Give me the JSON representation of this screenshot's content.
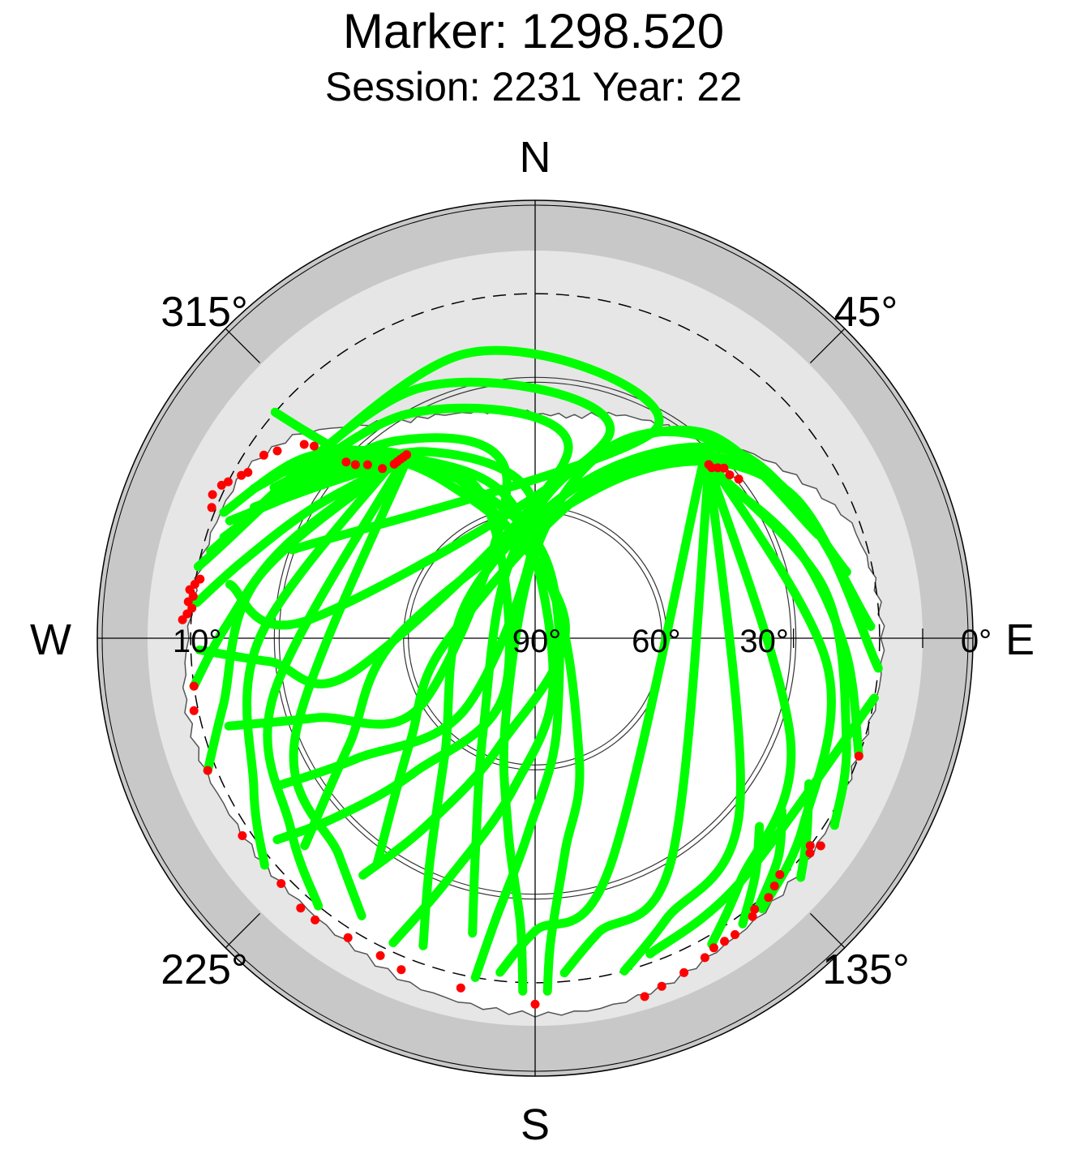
{
  "header": {
    "title": "Marker: 1298.520",
    "subtitle": "Session: 2231 Year: 22"
  },
  "chart_data": {
    "type": "scatter",
    "projection": "polar skyplot",
    "elevation_range": [
      0,
      90
    ],
    "azimuth_range": [
      0,
      360
    ],
    "direction_labels": [
      "N",
      "E",
      "S",
      "W"
    ],
    "azimuth_labels": [
      {
        "az": 45,
        "text": "45°"
      },
      {
        "az": 135,
        "text": "135°"
      },
      {
        "az": 225,
        "text": "225°"
      },
      {
        "az": 315,
        "text": "315°"
      }
    ],
    "elevation_labels": [
      {
        "el": 90,
        "text": "90°"
      },
      {
        "el": 60,
        "text": "60°"
      },
      {
        "el": 30,
        "text": "30°"
      },
      {
        "el": 0,
        "text": "0°"
      },
      {
        "el": 10,
        "text": "10°"
      }
    ],
    "cutoff_elevation": 10,
    "colors": {
      "track": "#00ff00",
      "low_elevation": "#ff0000",
      "outer_band": "#c8c8c8",
      "horizon_band": "#e6e6e6",
      "background": "#ffffff"
    },
    "horizon_mask": [
      [
        0,
        38
      ],
      [
        10,
        38
      ],
      [
        20,
        35
      ],
      [
        30,
        33
      ],
      [
        40,
        30
      ],
      [
        50,
        24
      ],
      [
        60,
        18
      ],
      [
        70,
        12
      ],
      [
        80,
        10
      ],
      [
        90,
        9
      ],
      [
        100,
        9
      ],
      [
        110,
        10
      ],
      [
        120,
        9
      ],
      [
        130,
        8
      ],
      [
        140,
        7
      ],
      [
        150,
        6
      ],
      [
        160,
        4
      ],
      [
        170,
        3
      ],
      [
        180,
        3
      ],
      [
        190,
        4
      ],
      [
        200,
        5
      ],
      [
        210,
        7
      ],
      [
        220,
        8
      ],
      [
        230,
        8
      ],
      [
        240,
        8
      ],
      [
        250,
        7
      ],
      [
        260,
        7
      ],
      [
        270,
        9
      ],
      [
        280,
        10
      ],
      [
        290,
        11
      ],
      [
        300,
        12
      ],
      [
        310,
        17
      ],
      [
        320,
        26
      ],
      [
        330,
        32
      ],
      [
        340,
        35
      ],
      [
        350,
        37
      ],
      [
        360,
        38
      ]
    ],
    "series": [
      {
        "values": [
          [
            318,
            37
          ],
          [
            314,
            28
          ],
          [
            312,
            18
          ],
          [
            311,
            10
          ]
        ]
      },
      {
        "values": [
          [
            321,
            38
          ],
          [
            300,
            30
          ],
          [
            285,
            20
          ],
          [
            276,
            11
          ]
        ]
      },
      {
        "values": [
          [
            322,
            38
          ],
          [
            290,
            28
          ],
          [
            272,
            18
          ],
          [
            262,
            10
          ]
        ]
      },
      {
        "values": [
          [
            324,
            38
          ],
          [
            282,
            24
          ],
          [
            258,
            16
          ],
          [
            248,
            8
          ]
        ]
      },
      {
        "values": [
          [
            323,
            37
          ],
          [
            270,
            26
          ],
          [
            242,
            16
          ],
          [
            230,
            8
          ]
        ]
      },
      {
        "values": [
          [
            325,
            38
          ],
          [
            258,
            28
          ],
          [
            232,
            18
          ],
          [
            219,
            10
          ]
        ]
      },
      {
        "values": [
          [
            326,
            38
          ],
          [
            248,
            30
          ],
          [
            222,
            22
          ],
          [
            212,
            14
          ]
        ]
      },
      {
        "values": [
          [
            320,
            37
          ],
          [
            310,
            32
          ],
          [
            302,
            26
          ],
          [
            296,
            20
          ]
        ]
      },
      {
        "values": [
          [
            317,
            33
          ],
          [
            303,
            26
          ],
          [
            295,
            18
          ]
        ]
      },
      {
        "values": [
          [
            316,
            32
          ],
          [
            300,
            24
          ],
          [
            291,
            14
          ]
        ]
      },
      {
        "values": [
          [
            300,
            20
          ],
          [
            315,
            30
          ],
          [
            330,
            48
          ],
          [
            12,
            76
          ],
          [
            160,
            60
          ],
          [
            172,
            40
          ],
          [
            177,
            20
          ],
          [
            178,
            8
          ]
        ]
      },
      {
        "values": [
          [
            298,
            16
          ],
          [
            312,
            26
          ],
          [
            328,
            42
          ],
          [
            5,
            70
          ],
          [
            165,
            70
          ],
          [
            182,
            45
          ],
          [
            188,
            24
          ],
          [
            190,
            10
          ]
        ]
      },
      {
        "values": [
          [
            292,
            12
          ],
          [
            308,
            22
          ],
          [
            322,
            36
          ],
          [
            350,
            58
          ],
          [
            155,
            80
          ],
          [
            188,
            55
          ],
          [
            200,
            30
          ],
          [
            205,
            12
          ]
        ]
      },
      {
        "values": [
          [
            305,
            20
          ],
          [
            318,
            32
          ],
          [
            335,
            50
          ],
          [
            60,
            82
          ],
          [
            198,
            64
          ],
          [
            210,
            40
          ],
          [
            216,
            22
          ]
        ]
      },
      {
        "values": [
          [
            308,
            24
          ],
          [
            322,
            36
          ],
          [
            340,
            56
          ],
          [
            210,
            76
          ],
          [
            222,
            48
          ],
          [
            228,
            28
          ],
          [
            232,
            14
          ]
        ]
      },
      {
        "values": [
          [
            300,
            22
          ],
          [
            330,
            40
          ],
          [
            0,
            60
          ],
          [
            225,
            68
          ],
          [
            236,
            40
          ],
          [
            240,
            22
          ]
        ]
      },
      {
        "values": [
          [
            294,
            18
          ],
          [
            325,
            34
          ],
          [
            350,
            52
          ],
          [
            240,
            60
          ],
          [
            250,
            36
          ],
          [
            254,
            16
          ]
        ]
      },
      {
        "values": [
          [
            288,
            14
          ],
          [
            330,
            30
          ],
          [
            10,
            46
          ],
          [
            260,
            48
          ],
          [
            265,
            28
          ],
          [
            268,
            12
          ]
        ]
      },
      {
        "values": [
          [
            285,
            12
          ],
          [
            335,
            26
          ],
          [
            20,
            40
          ],
          [
            275,
            38
          ],
          [
            280,
            18
          ]
        ]
      },
      {
        "values": [
          [
            282,
            10
          ],
          [
            345,
            22
          ],
          [
            30,
            34
          ],
          [
            290,
            30
          ]
        ]
      },
      {
        "values": [
          [
            46,
            34
          ],
          [
            70,
            26
          ],
          [
            92,
            18
          ],
          [
            110,
            10
          ]
        ]
      },
      {
        "values": [
          [
            45,
            33
          ],
          [
            80,
            22
          ],
          [
            108,
            14
          ],
          [
            122,
            8
          ]
        ]
      },
      {
        "values": [
          [
            44,
            32
          ],
          [
            95,
            22
          ],
          [
            125,
            14
          ],
          [
            140,
            8
          ]
        ]
      },
      {
        "values": [
          [
            43,
            32
          ],
          [
            112,
            26
          ],
          [
            140,
            16
          ],
          [
            150,
            8
          ]
        ]
      },
      {
        "values": [
          [
            45,
            33
          ],
          [
            130,
            28
          ],
          [
            155,
            18
          ],
          [
            165,
            10
          ]
        ]
      },
      {
        "values": [
          [
            46,
            34
          ],
          [
            148,
            30
          ],
          [
            168,
            20
          ],
          [
            175,
            12
          ]
        ]
      },
      {
        "values": [
          [
            44,
            34
          ],
          [
            162,
            34
          ],
          [
            180,
            22
          ],
          [
            186,
            12
          ]
        ]
      },
      {
        "values": [
          [
            60,
            22
          ],
          [
            38,
            30
          ],
          [
            20,
            44
          ],
          [
            0,
            70
          ],
          [
            200,
            70
          ],
          [
            188,
            45
          ],
          [
            183,
            24
          ],
          [
            182,
            8
          ]
        ]
      },
      {
        "values": [
          [
            70,
            20
          ],
          [
            40,
            28
          ],
          [
            15,
            48
          ],
          [
            340,
            72
          ],
          [
            210,
            66
          ],
          [
            196,
            40
          ],
          [
            192,
            20
          ]
        ]
      },
      {
        "values": [
          [
            78,
            16
          ],
          [
            48,
            26
          ],
          [
            20,
            50
          ],
          [
            300,
            72
          ],
          [
            218,
            56
          ],
          [
            205,
            32
          ],
          [
            200,
            14
          ]
        ]
      },
      {
        "values": [
          [
            88,
            12
          ],
          [
            55,
            24
          ],
          [
            25,
            48
          ],
          [
            270,
            70
          ],
          [
            230,
            52
          ],
          [
            215,
            26
          ]
        ]
      },
      {
        "values": [
          [
            95,
            10
          ],
          [
            60,
            22
          ],
          [
            30,
            46
          ],
          [
            275,
            60
          ],
          [
            240,
            40
          ],
          [
            228,
            18
          ]
        ]
      },
      {
        "values": [
          [
            100,
            10
          ],
          [
            140,
            16
          ],
          [
            160,
            12
          ]
        ]
      },
      {
        "values": [
          [
            125,
            20
          ],
          [
            132,
            14
          ],
          [
            140,
            9
          ]
        ]
      },
      {
        "values": [
          [
            130,
            22
          ],
          [
            137,
            15
          ],
          [
            144,
            8
          ]
        ]
      },
      {
        "values": [
          [
            118,
            18
          ],
          [
            126,
            12
          ],
          [
            132,
            7
          ]
        ]
      }
    ],
    "low_elevation_points": [
      [
        321,
        38
      ],
      [
        322,
        38
      ],
      [
        323,
        38
      ],
      [
        324,
        38
      ],
      [
        325,
        38
      ],
      [
        318,
        37
      ],
      [
        316,
        34
      ],
      [
        314,
        32
      ],
      [
        313,
        30
      ],
      [
        311,
        22
      ],
      [
        310,
        20
      ],
      [
        306,
        16
      ],
      [
        304,
        14
      ],
      [
        300,
        13
      ],
      [
        299,
        12
      ],
      [
        297,
        10
      ],
      [
        296,
        9
      ],
      [
        294,
        8
      ],
      [
        292,
        9
      ],
      [
        280,
        11
      ],
      [
        279,
        10
      ],
      [
        278,
        9
      ],
      [
        277,
        10
      ],
      [
        276,
        9
      ],
      [
        275,
        10
      ],
      [
        274,
        9
      ],
      [
        273,
        8
      ],
      [
        262,
        10
      ],
      [
        258,
        9
      ],
      [
        248,
        8
      ],
      [
        236,
        8
      ],
      [
        226,
        8
      ],
      [
        221,
        7
      ],
      [
        218,
        7
      ],
      [
        212,
        8
      ],
      [
        206,
        8
      ],
      [
        202,
        7
      ],
      [
        192,
        7
      ],
      [
        180,
        5
      ],
      [
        163,
        3
      ],
      [
        160,
        4
      ],
      [
        156,
        5
      ],
      [
        152,
        6
      ],
      [
        150,
        7
      ],
      [
        148,
        7
      ],
      [
        146,
        7
      ],
      [
        142,
        8
      ],
      [
        141,
        9
      ],
      [
        138,
        9
      ],
      [
        136,
        10
      ],
      [
        134,
        11
      ],
      [
        128,
        9
      ],
      [
        127,
        10
      ],
      [
        126,
        8
      ],
      [
        45,
        33
      ],
      [
        46,
        33
      ],
      [
        47,
        32
      ],
      [
        48,
        31
      ],
      [
        50,
        31
      ],
      [
        52,
        30
      ],
      [
        110,
        10
      ]
    ]
  }
}
